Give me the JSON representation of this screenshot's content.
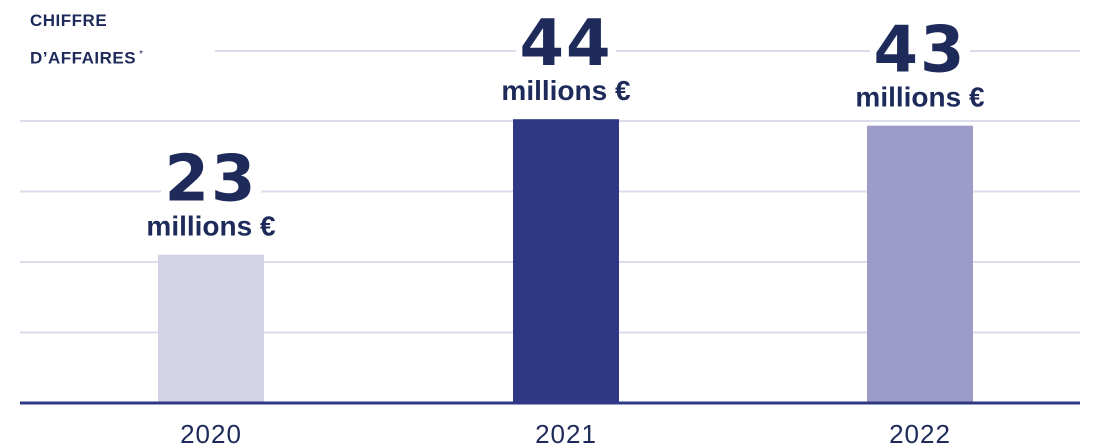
{
  "chart_data": {
    "type": "bar",
    "ylabel_lines": [
      "CHIFFRE",
      "D’AFFAIRES"
    ],
    "ylabel_note": "*",
    "categories": [
      "2020",
      "2021",
      "2022"
    ],
    "values": [
      23,
      44,
      43
    ],
    "value_unit": "millions €",
    "colors": [
      "#d3d3e8",
      "#2e3885",
      "#9d9bc8"
    ],
    "axis_color": "#2e3885",
    "grid_color": "#dcdcec",
    "text_color": "#1e2a5a",
    "grid": true
  }
}
